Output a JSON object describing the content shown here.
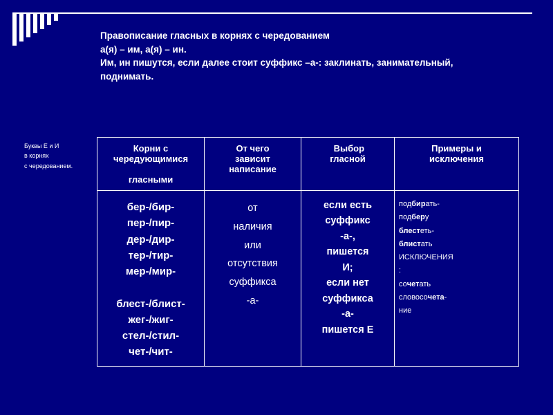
{
  "title": {
    "line1": "Правописание гласных в корнях с чередованием",
    "line2": "а(я) – им, а(я) – ин.",
    "line3": "Им, ин пишутся, если далее стоит суффикс –а-: заклинать, занимательный, поднимать."
  },
  "sidecaption": {
    "l1": "Буквы Е и И",
    "l2": "в корнях",
    "l3": "с чередованием."
  },
  "headers": {
    "c0a": "Корни с",
    "c0b": "чередующимися",
    "c0c": "гласными",
    "c1a": "От чего",
    "c1b": "зависит",
    "c1c": "написание",
    "c2a": "Выбор",
    "c2b": "гласной",
    "c3a": "Примеры и",
    "c3b": "исключения"
  },
  "roots": {
    "r1": "бер-/бир-",
    "r2": "пер-/пир-",
    "r3": "дер-/дир-",
    "r4": "тер-/тир-",
    "r5": "мер-/мир-",
    "r6": "блест-/блист-",
    "r7": "жег-/жиг-",
    "r8": "стел-/стил-",
    "r9": "чет-/чит-"
  },
  "dep": {
    "d1": "от",
    "d2": "наличия",
    "d3": "или",
    "d4": "отсутствия",
    "d5": "суффикса",
    "d6": "-а-"
  },
  "choice": {
    "c1": "если есть",
    "c2": "суффикс",
    "c3": "-а-,",
    "c4": "пишется",
    "c5": "И;",
    "c6": "если нет",
    "c7": "суффикса",
    "c8": "-а-",
    "c9": "пишется Е"
  },
  "examples": {
    "e1a": "под",
    "e1b": "бир",
    "e1c": "ать-",
    "e2a": "под",
    "e2b": "бер",
    "e2c": "у",
    "e3a": "блест",
    "e3b": "еть-",
    "e4a": "блист",
    "e4b": "ать",
    "exc": "ИСКЛЮЧЕНИЯ",
    "colon": ":",
    "e5a": "со",
    "e5b": "чет",
    "e5c": "ать",
    "e6a": "словосо",
    "e6b": "чета",
    "e6c": "-",
    "e6d": "ние"
  }
}
